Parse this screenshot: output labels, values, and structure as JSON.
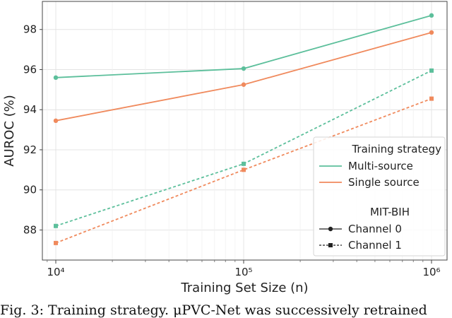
{
  "chart_data": {
    "type": "line",
    "xscale": "log",
    "x": [
      10000,
      100000,
      1000000
    ],
    "x_tick_labels": [
      "10⁴",
      "10⁵",
      "10⁶"
    ],
    "xlabel": "Training Set Size (n)",
    "ylabel": "AUROC (%)",
    "ylim": [
      86.5,
      99.4
    ],
    "y_ticks": [
      88,
      90,
      92,
      94,
      96,
      98
    ],
    "grid": true,
    "legend_placement": "bottom-right",
    "legend": {
      "title1": "Training strategy",
      "strategies": [
        {
          "label": "Multi-source",
          "color": "#5cbf9b"
        },
        {
          "label": "Single source",
          "color": "#f08a5d"
        }
      ],
      "title2": "MIT-BIH",
      "channels": [
        {
          "label": "Channel 0",
          "style": "solid",
          "marker": "circle"
        },
        {
          "label": "Channel 1",
          "style": "dashed",
          "marker": "square"
        }
      ]
    },
    "series": [
      {
        "strategy": "Multi-source",
        "channel": "Channel 0",
        "color": "#5cbf9b",
        "style": "solid",
        "marker": "circle",
        "values": [
          95.6,
          96.05,
          98.7
        ]
      },
      {
        "strategy": "Single source",
        "channel": "Channel 0",
        "color": "#f08a5d",
        "style": "solid",
        "marker": "circle",
        "values": [
          93.45,
          95.25,
          97.85
        ]
      },
      {
        "strategy": "Multi-source",
        "channel": "Channel 1",
        "color": "#5cbf9b",
        "style": "dashed",
        "marker": "square",
        "values": [
          88.2,
          91.3,
          95.95
        ]
      },
      {
        "strategy": "Single source",
        "channel": "Channel 1",
        "color": "#f08a5d",
        "style": "dashed",
        "marker": "square",
        "values": [
          87.35,
          91.0,
          94.55
        ]
      }
    ]
  },
  "caption": "Fig. 3: Training strategy. μPVC-Net was successively retrained"
}
